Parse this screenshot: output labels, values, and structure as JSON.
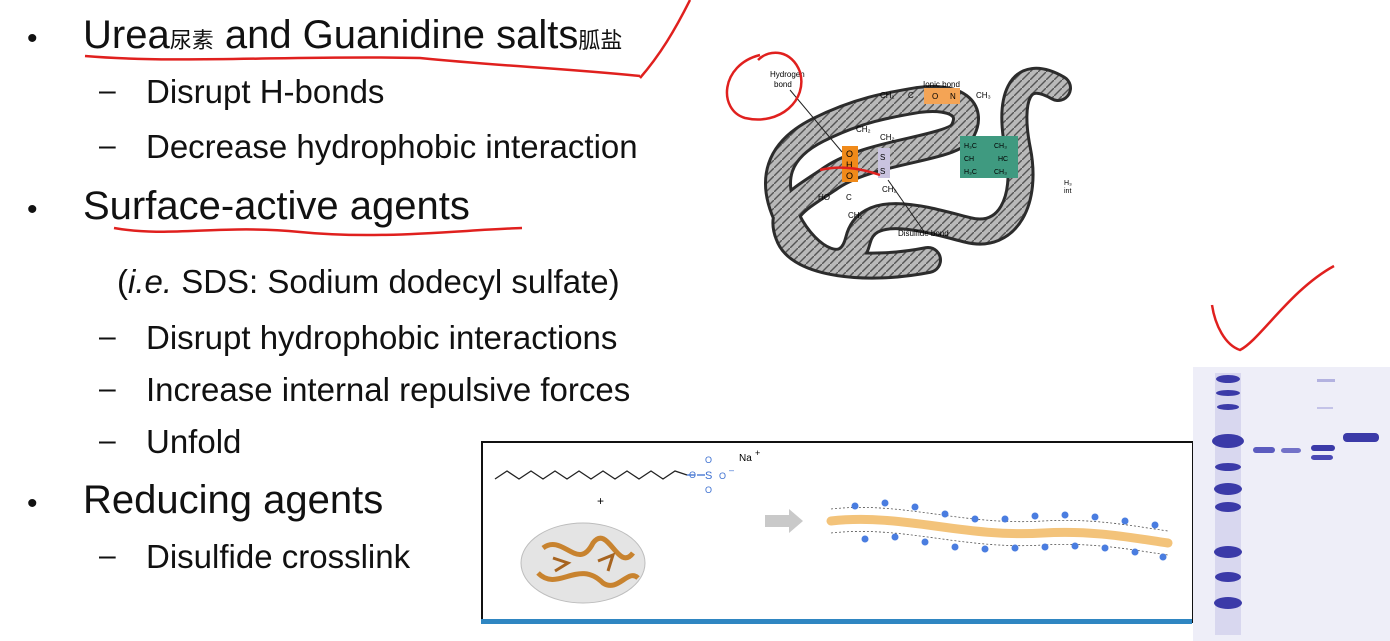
{
  "bullets": [
    {
      "text": "Urea",
      "cjk1": "尿素",
      "text2": " and Guanidine salts",
      "cjk2": "胍盐",
      "subs": [
        "Disrupt H-bonds",
        "Decrease hydrophobic interaction"
      ]
    },
    {
      "text": "Surface-active agents",
      "note_prefix": "(",
      "note_ie": "i.e.",
      "note_rest": " SDS: Sodium dodecyl sulfate)",
      "subs": [
        "Disrupt hydrophobic interactions",
        "Increase internal repulsive forces",
        "Unfold"
      ]
    },
    {
      "text": "Reducing agents",
      "subs": [
        "Disulfide crosslink"
      ]
    }
  ],
  "markers": {
    "bullet": "•",
    "dash": "–"
  },
  "protein_figure": {
    "hydrogen_label_1": "Hydrogen",
    "hydrogen_label_2": "bond",
    "ionic_label": "Ionic bond",
    "disulfide_label": "Disulfide bond",
    "ch2": "CH₂",
    "ch3": "CH₃",
    "o": "O",
    "h": "H",
    "c": "C",
    "s": "S",
    "ho": "HO",
    "nh3": "N",
    "h3c": "H₃C",
    "ch": "CH",
    "hc": "HC",
    "edge_text_1": "H₃",
    "edge_text_2": "int"
  },
  "sds_figure": {
    "na_label": "Na",
    "na_charge": "+",
    "plus": "+",
    "minus": "–",
    "o": "O",
    "s": "S"
  },
  "colors": {
    "annotation_red": "#e0201e",
    "sds_bar": "#2f86c2",
    "protein_orange": "#c8832f",
    "hydrophobic_green": "#3f9a80",
    "charge_blue": "#4a7de0",
    "gel_blue": "#3b3aa8"
  }
}
